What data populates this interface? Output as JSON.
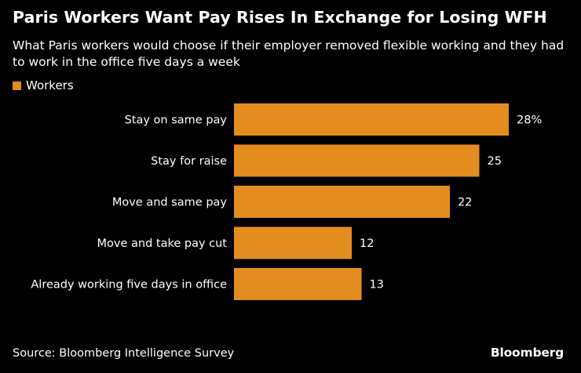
{
  "chart_data": {
    "type": "bar",
    "orientation": "horizontal",
    "title": "Paris Workers Want Pay Rises In Exchange for Losing WFH",
    "subtitle": "What Paris workers would choose if their employer removed flexible working and they had to work in the office five days a week",
    "categories": [
      "Stay on same pay",
      "Stay for raise",
      "Move and same pay",
      "Move and take pay cut",
      "Already working five days in office"
    ],
    "series": [
      {
        "name": "Workers",
        "values": [
          28,
          25,
          22,
          12,
          13
        ],
        "value_labels": [
          "28%",
          "25",
          "22",
          "12",
          "13"
        ],
        "color": "#e38d1f"
      }
    ],
    "xlim": [
      0,
      28
    ],
    "xlabel": "",
    "ylabel": "",
    "grid": false,
    "legend": "top-left"
  },
  "legend_label": "Workers",
  "source": "Source: Bloomberg Intelligence Survey",
  "brand": "Bloomberg",
  "colors": {
    "background": "#000000",
    "bar": "#e38d1f",
    "text": "#ffffff"
  }
}
